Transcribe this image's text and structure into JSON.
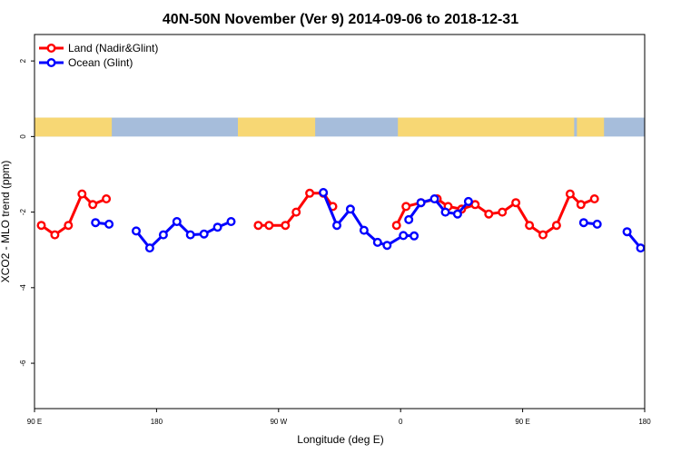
{
  "chart_data": {
    "type": "line",
    "title": "40N-50N November (Ver 9)   2014-09-06 to 2018-12-31",
    "xlabel": "Longitude (deg E)",
    "ylabel": "XCO2 - MLO trend (ppm)",
    "xlim": [
      90,
      540
    ],
    "ylim": [
      -7.2,
      2.7
    ],
    "x_ticks": [
      {
        "value": 90,
        "label": "90 E"
      },
      {
        "value": 180,
        "label": "180"
      },
      {
        "value": 270,
        "label": "90 W"
      },
      {
        "value": 360,
        "label": "0"
      },
      {
        "value": 450,
        "label": "90 E"
      },
      {
        "value": 540,
        "label": "180"
      }
    ],
    "y_ticks": [
      {
        "value": 2,
        "label": "2"
      },
      {
        "value": 0,
        "label": "0"
      },
      {
        "value": -2,
        "label": "-2"
      },
      {
        "value": -4,
        "label": "-4"
      },
      {
        "value": -6,
        "label": "-6"
      }
    ],
    "legend_position": "top-left",
    "map_strip_ylim": [
      0,
      0.5
    ],
    "colors": {
      "land": "#ff0000",
      "ocean": "#0000ff",
      "map_land": "#f7d774",
      "map_ocean": "#a6bddb"
    },
    "series": [
      {
        "name": "Land (Nadir&Glint)",
        "color": "#ff0000",
        "segments": [
          [
            [
              95,
              -2.35
            ],
            [
              105,
              -2.6
            ],
            [
              115,
              -2.35
            ],
            [
              125,
              -1.52
            ],
            [
              133,
              -1.8
            ],
            [
              143,
              -1.65
            ]
          ],
          [
            [
              255,
              -2.35
            ],
            [
              263,
              -2.35
            ],
            [
              275,
              -2.35
            ],
            [
              283,
              -2.0
            ],
            [
              293,
              -1.5
            ],
            [
              303,
              -1.5
            ],
            [
              310,
              -1.85
            ]
          ],
          [
            [
              357,
              -2.35
            ],
            [
              364,
              -1.85
            ],
            [
              375,
              -1.75
            ],
            [
              387,
              -1.65
            ],
            [
              395,
              -1.85
            ],
            [
              405,
              -1.92
            ],
            [
              415,
              -1.8
            ],
            [
              425,
              -2.05
            ],
            [
              435,
              -2.0
            ],
            [
              445,
              -1.75
            ],
            [
              455,
              -2.35
            ],
            [
              465,
              -2.6
            ],
            [
              475,
              -2.35
            ],
            [
              485,
              -1.52
            ],
            [
              493,
              -1.8
            ],
            [
              503,
              -1.65
            ]
          ]
        ]
      },
      {
        "name": "Ocean (Glint)",
        "color": "#0000ff",
        "segments": [
          [
            [
              135,
              -2.28
            ],
            [
              145,
              -2.32
            ]
          ],
          [
            [
              165,
              -2.5
            ],
            [
              175,
              -2.95
            ],
            [
              185,
              -2.6
            ],
            [
              195,
              -2.25
            ],
            [
              205,
              -2.6
            ],
            [
              215,
              -2.58
            ],
            [
              225,
              -2.4
            ],
            [
              235,
              -2.25
            ]
          ],
          [
            [
              303,
              -1.48
            ],
            [
              313,
              -2.35
            ],
            [
              323,
              -1.92
            ],
            [
              333,
              -2.48
            ],
            [
              343,
              -2.8
            ],
            [
              350,
              -2.88
            ],
            [
              362,
              -2.62
            ],
            [
              370,
              -2.63
            ]
          ],
          [
            [
              366,
              -2.2
            ],
            [
              375,
              -1.75
            ],
            [
              385,
              -1.65
            ],
            [
              393,
              -2.0
            ],
            [
              402,
              -2.05
            ],
            [
              410,
              -1.72
            ]
          ],
          [
            [
              495,
              -2.28
            ],
            [
              505,
              -2.32
            ]
          ],
          [
            [
              527,
              -2.52
            ],
            [
              537,
              -2.95
            ]
          ]
        ]
      }
    ]
  }
}
